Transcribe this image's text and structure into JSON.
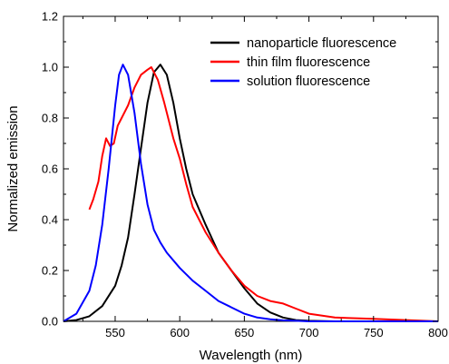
{
  "chart_data": {
    "type": "line",
    "xlabel": "Wavelength (nm)",
    "ylabel": "Normalized emission",
    "xlim": [
      510,
      800
    ],
    "ylim": [
      0.0,
      1.2
    ],
    "x_ticks": [
      550,
      600,
      650,
      700,
      750,
      800
    ],
    "x_tick_labels": [
      "550",
      "600",
      "650",
      "700",
      "750",
      "800"
    ],
    "y_ticks": [
      0.0,
      0.2,
      0.4,
      0.6,
      0.8,
      1.0,
      1.2
    ],
    "y_tick_labels": [
      "0.0",
      "0.2",
      "0.4",
      "0.6",
      "0.8",
      "1.0",
      "1.2"
    ],
    "grid": false,
    "legend_position": "top-right",
    "series": [
      {
        "name": "nanoparticle fluorescence",
        "color": "#000000",
        "x": [
          510,
          520,
          530,
          540,
          550,
          555,
          560,
          565,
          570,
          575,
          580,
          585,
          590,
          595,
          600,
          605,
          610,
          620,
          630,
          640,
          650,
          660,
          670,
          680,
          690,
          700,
          720,
          750,
          800
        ],
        "y": [
          0.0,
          0.005,
          0.02,
          0.06,
          0.14,
          0.22,
          0.33,
          0.5,
          0.68,
          0.86,
          0.98,
          1.01,
          0.97,
          0.86,
          0.72,
          0.6,
          0.5,
          0.38,
          0.27,
          0.2,
          0.13,
          0.07,
          0.035,
          0.015,
          0.005,
          0.002,
          0.0,
          0.0,
          0.0
        ]
      },
      {
        "name": "thin film fluorescence",
        "color": "#ff0000",
        "x": [
          530,
          533,
          537,
          540,
          543,
          546,
          549,
          552,
          555,
          560,
          565,
          570,
          575,
          578,
          580,
          583,
          588,
          595,
          600,
          605,
          610,
          620,
          630,
          640,
          650,
          660,
          670,
          680,
          690,
          700,
          720,
          750,
          800
        ],
        "y": [
          0.44,
          0.48,
          0.55,
          0.65,
          0.72,
          0.69,
          0.7,
          0.77,
          0.8,
          0.85,
          0.92,
          0.97,
          0.99,
          1.0,
          0.98,
          0.95,
          0.86,
          0.72,
          0.64,
          0.54,
          0.45,
          0.35,
          0.27,
          0.2,
          0.14,
          0.1,
          0.08,
          0.07,
          0.05,
          0.03,
          0.015,
          0.01,
          0.0
        ]
      },
      {
        "name": "solution fluorescence",
        "color": "#0000ff",
        "x": [
          510,
          520,
          530,
          535,
          540,
          545,
          550,
          553,
          556,
          560,
          565,
          570,
          575,
          580,
          585,
          590,
          600,
          610,
          620,
          630,
          640,
          650,
          660,
          670,
          680,
          690,
          700,
          720,
          750,
          800
        ],
        "y": [
          0.0,
          0.03,
          0.12,
          0.22,
          0.38,
          0.6,
          0.85,
          0.97,
          1.01,
          0.97,
          0.82,
          0.62,
          0.46,
          0.36,
          0.31,
          0.27,
          0.21,
          0.16,
          0.12,
          0.08,
          0.055,
          0.03,
          0.015,
          0.008,
          0.004,
          0.002,
          0.0,
          0.0,
          0.0,
          0.0
        ]
      }
    ]
  }
}
